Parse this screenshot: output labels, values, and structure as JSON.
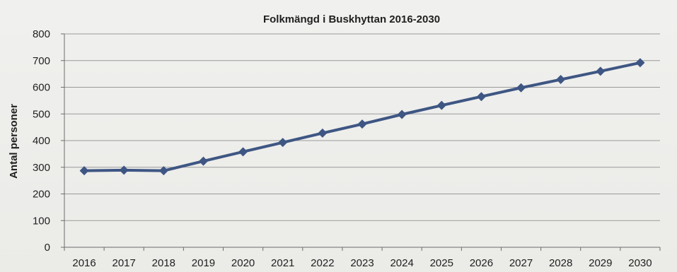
{
  "chart_data": {
    "type": "line",
    "title": "Folkmängd i Buskhyttan 2016-2030",
    "xlabel": "",
    "ylabel": "Antal personer",
    "x": [
      "2016",
      "2017",
      "2018",
      "2019",
      "2020",
      "2021",
      "2022",
      "2023",
      "2024",
      "2025",
      "2026",
      "2027",
      "2028",
      "2029",
      "2030"
    ],
    "series": [
      {
        "values": [
          287,
          289,
          287,
          323,
          358,
          393,
          428,
          462,
          498,
          532,
          565,
          598,
          629,
          660,
          692
        ],
        "color": "#3e5683",
        "marker": "diamond"
      }
    ],
    "ylim": [
      0,
      800
    ],
    "yticks": [
      "0",
      "100",
      "200",
      "300",
      "400",
      "500",
      "600",
      "700",
      "800"
    ],
    "grid": true,
    "legend": "none"
  }
}
